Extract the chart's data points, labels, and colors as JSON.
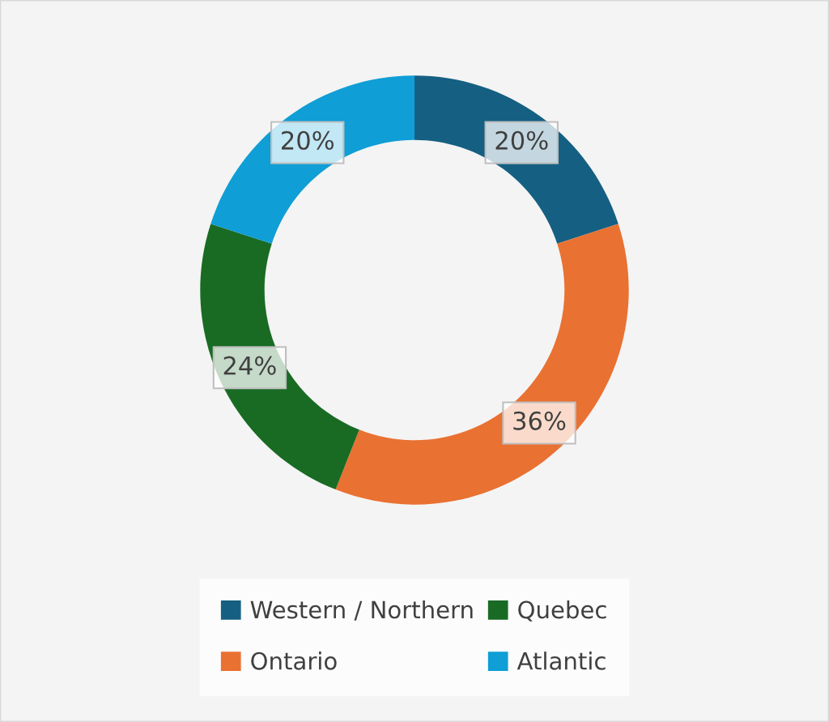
{
  "chart_data": {
    "type": "donut",
    "categories": [
      "Western / Northern",
      "Ontario",
      "Quebec",
      "Atlantic"
    ],
    "values": [
      20,
      36,
      24,
      20
    ],
    "colors": [
      "#156082",
      "#e97132",
      "#196b24",
      "#0f9ed5"
    ],
    "value_labels": [
      "20%",
      "36%",
      "24%",
      "20%"
    ],
    "legend": "bottom"
  }
}
